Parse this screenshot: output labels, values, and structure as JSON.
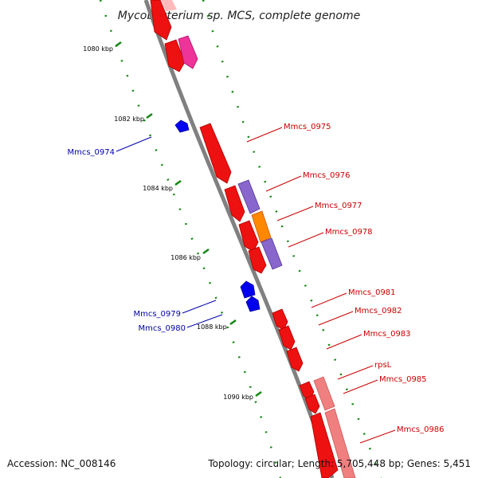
{
  "title": "Mycobacterium sp. MCS, complete genome",
  "footer": {
    "accession": "Accession: NC_008146",
    "topology": "Topology: circular; Length: 5,705,448 bp; Genes: 5,451"
  },
  "ticks": [
    {
      "label": "1080 kbp"
    },
    {
      "label": "1082 kbp"
    },
    {
      "label": "1084 kbp"
    },
    {
      "label": "1086 kbp"
    },
    {
      "label": "1088 kbp"
    },
    {
      "label": "1090 kbp"
    }
  ],
  "genes": [
    {
      "name": "Mmcs_0975"
    },
    {
      "name": "Mmcs_0976"
    },
    {
      "name": "Mmcs_0977"
    },
    {
      "name": "Mmcs_0978"
    },
    {
      "name": "Mmcs_0981"
    },
    {
      "name": "Mmcs_0982"
    },
    {
      "name": "Mmcs_0983"
    },
    {
      "name": "rpsL"
    },
    {
      "name": "Mmcs_0985"
    },
    {
      "name": "Mmcs_0986"
    },
    {
      "name": "Mmcs_0974"
    },
    {
      "name": "Mmcs_0979"
    },
    {
      "name": "Mmcs_0980"
    }
  ],
  "colors": {
    "forward_label": "#cc0000",
    "reverse_label": "#0000aa",
    "gene_red": "#ee1111",
    "gene_pink": "#f08080",
    "gene_magenta": "#ee3399",
    "gene_purple": "#8866cc",
    "gene_orange": "#ff8800",
    "gene_blue": "#0000ee",
    "backbone": "#808080",
    "tick_green": "#118811"
  }
}
